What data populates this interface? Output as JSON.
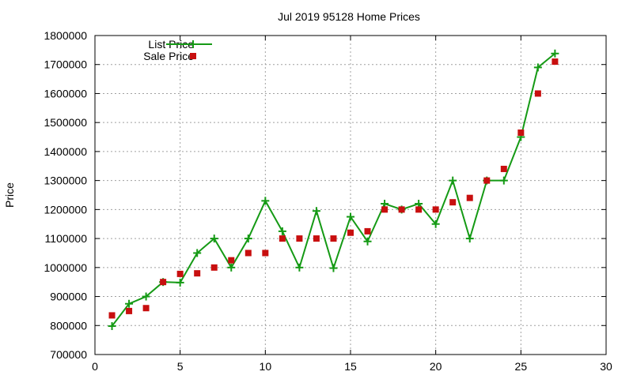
{
  "chart_data": {
    "type": "line",
    "title": "Jul 2019 95128 Home Prices",
    "xlabel": "",
    "ylabel": "Price",
    "xlim": [
      0,
      30
    ],
    "ylim": [
      700000,
      1800000
    ],
    "x_ticks": [
      "0",
      "5",
      "10",
      "15",
      "20",
      "25",
      "30"
    ],
    "y_ticks": [
      "700000",
      "800000",
      "900000",
      "1000000",
      "1100000",
      "1200000",
      "1300000",
      "1400000",
      "1500000",
      "1600000",
      "1700000",
      "1800000"
    ],
    "grid": true,
    "legend_position": "top-left",
    "series": [
      {
        "name": "List Price",
        "style": "line-with-plus-markers",
        "color": "#159a15",
        "x": [
          1,
          2,
          3,
          4,
          5,
          6,
          7,
          8,
          9,
          10,
          11,
          12,
          13,
          14,
          15,
          16,
          17,
          18,
          19,
          20,
          21,
          22,
          23,
          24,
          25,
          26,
          27
        ],
        "values": [
          798000,
          875000,
          900000,
          950000,
          948000,
          1050000,
          1100000,
          1000000,
          1100000,
          1230000,
          1125000,
          1000000,
          1195000,
          998000,
          1175000,
          1090000,
          1220000,
          1200000,
          1220000,
          1150000,
          1300000,
          1100000,
          1300000,
          1300000,
          1450000,
          1690000,
          1738000
        ]
      },
      {
        "name": "Sale Price",
        "style": "square-markers",
        "color": "#c80f0f",
        "x": [
          1,
          2,
          3,
          4,
          5,
          6,
          7,
          8,
          9,
          10,
          11,
          12,
          13,
          14,
          15,
          16,
          17,
          18,
          19,
          20,
          21,
          22,
          23,
          24,
          25,
          26,
          27
        ],
        "values": [
          835000,
          850000,
          860000,
          950000,
          978000,
          980000,
          1000000,
          1025000,
          1050000,
          1050000,
          1100000,
          1100000,
          1100000,
          1100000,
          1120000,
          1125000,
          1200000,
          1200000,
          1200000,
          1200000,
          1225000,
          1240000,
          1300000,
          1340000,
          1465000,
          1600000,
          1710000
        ]
      }
    ]
  }
}
